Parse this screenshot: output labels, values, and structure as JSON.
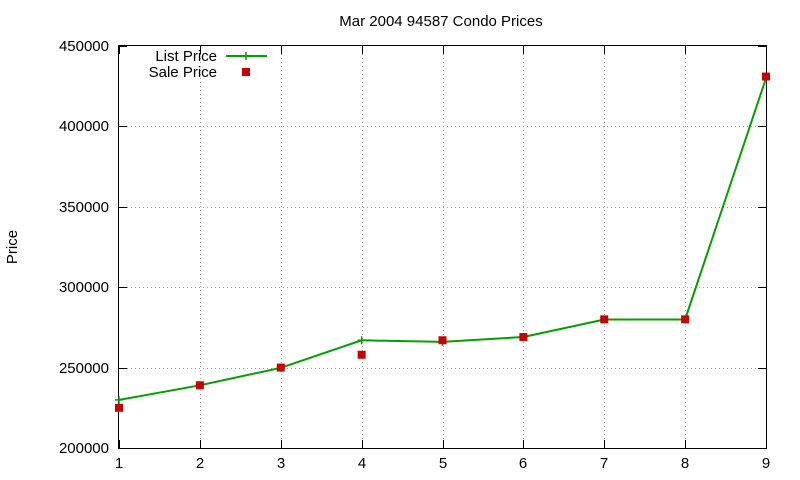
{
  "chart_data": {
    "type": "line",
    "title": "Mar 2004 94587 Condo Prices",
    "xlabel": "",
    "ylabel": "Price",
    "xlim": [
      1,
      9
    ],
    "ylim": [
      200000,
      450000
    ],
    "x_ticks": [
      "1",
      "2",
      "3",
      "4",
      "5",
      "6",
      "7",
      "8",
      "9"
    ],
    "y_ticks": [
      "200000",
      "250000",
      "300000",
      "350000",
      "400000",
      "450000"
    ],
    "grid": true,
    "legend_position": "top-left",
    "x": [
      1,
      2,
      3,
      4,
      5,
      6,
      7,
      8,
      9
    ],
    "series": [
      {
        "name": "List Price",
        "style": "line-points",
        "color": "#00a000",
        "values": [
          229900,
          239000,
          249900,
          267000,
          266000,
          269000,
          279900,
          279900,
          429900
        ]
      },
      {
        "name": "Sale Price",
        "style": "points",
        "color": "#cc0000",
        "values": [
          225000,
          239000,
          250000,
          258000,
          267000,
          269000,
          280000,
          280000,
          431000
        ]
      }
    ]
  }
}
